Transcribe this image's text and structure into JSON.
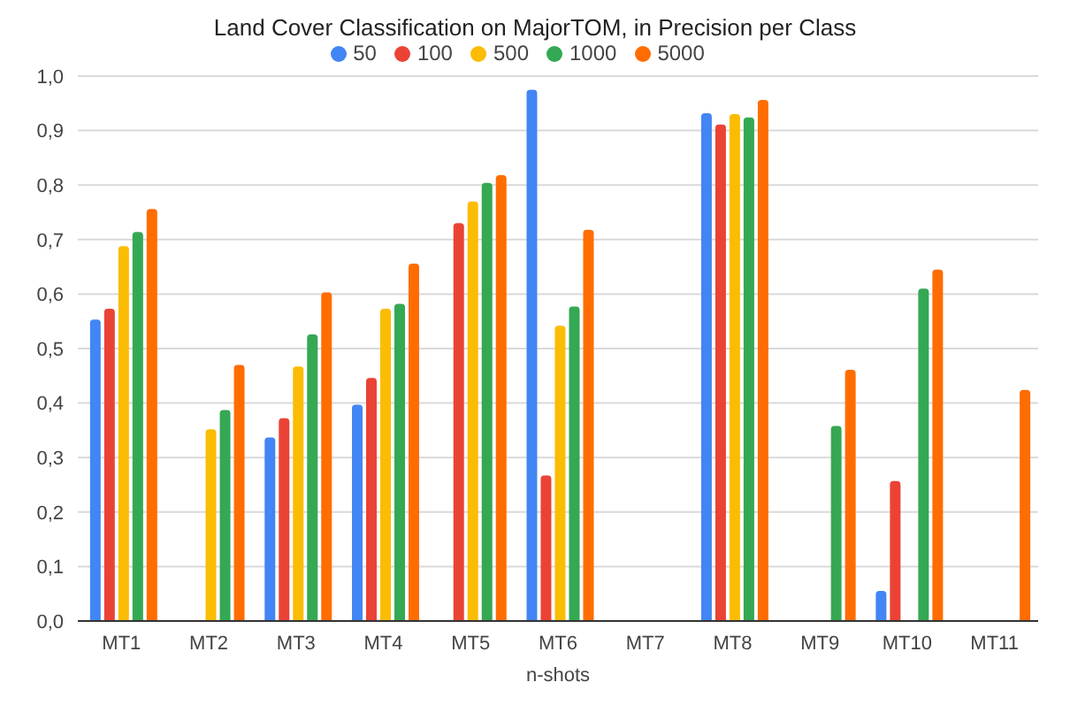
{
  "chart_data": {
    "type": "bar",
    "title": "Land Cover Classification on MajorTOM, in Precision per Class",
    "xlabel": "n-shots",
    "categories": [
      "MT1",
      "MT2",
      "MT3",
      "MT4",
      "MT5",
      "MT6",
      "MT7",
      "MT8",
      "MT9",
      "MT10",
      "MT11"
    ],
    "series": [
      {
        "name": "50",
        "color": "#4285f4",
        "values": [
          0.553,
          0,
          0.337,
          0.397,
          0,
          0.975,
          0,
          0.932,
          0,
          0.055,
          0
        ]
      },
      {
        "name": "100",
        "color": "#ea4335",
        "values": [
          0.573,
          0,
          0.372,
          0.446,
          0.73,
          0.267,
          0,
          0.911,
          0,
          0.257,
          0
        ]
      },
      {
        "name": "500",
        "color": "#fbbc04",
        "values": [
          0.688,
          0.352,
          0.467,
          0.573,
          0.77,
          0.542,
          0,
          0.93,
          0,
          0,
          0
        ]
      },
      {
        "name": "1000",
        "color": "#34a853",
        "values": [
          0.714,
          0.387,
          0.526,
          0.582,
          0.804,
          0.577,
          0,
          0.924,
          0.358,
          0.61,
          0
        ]
      },
      {
        "name": "5000",
        "color": "#ff6d01",
        "values": [
          0.756,
          0.47,
          0.603,
          0.656,
          0.818,
          0.718,
          0,
          0.956,
          0.461,
          0.645,
          0.424
        ]
      }
    ],
    "ylim": [
      0,
      1
    ],
    "yticks": [
      {
        "value": 0,
        "label": "0,0"
      },
      {
        "value": 0.1,
        "label": "0,1"
      },
      {
        "value": 0.2,
        "label": "0,2"
      },
      {
        "value": 0.3,
        "label": "0,3"
      },
      {
        "value": 0.4,
        "label": "0,4"
      },
      {
        "value": 0.5,
        "label": "0,5"
      },
      {
        "value": 0.6,
        "label": "0,6"
      },
      {
        "value": 0.7,
        "label": "0,7"
      },
      {
        "value": 0.8,
        "label": "0,8"
      },
      {
        "value": 0.9,
        "label": "0,9"
      },
      {
        "value": 1,
        "label": "1,0"
      }
    ],
    "grid": "y",
    "legend": "top"
  }
}
